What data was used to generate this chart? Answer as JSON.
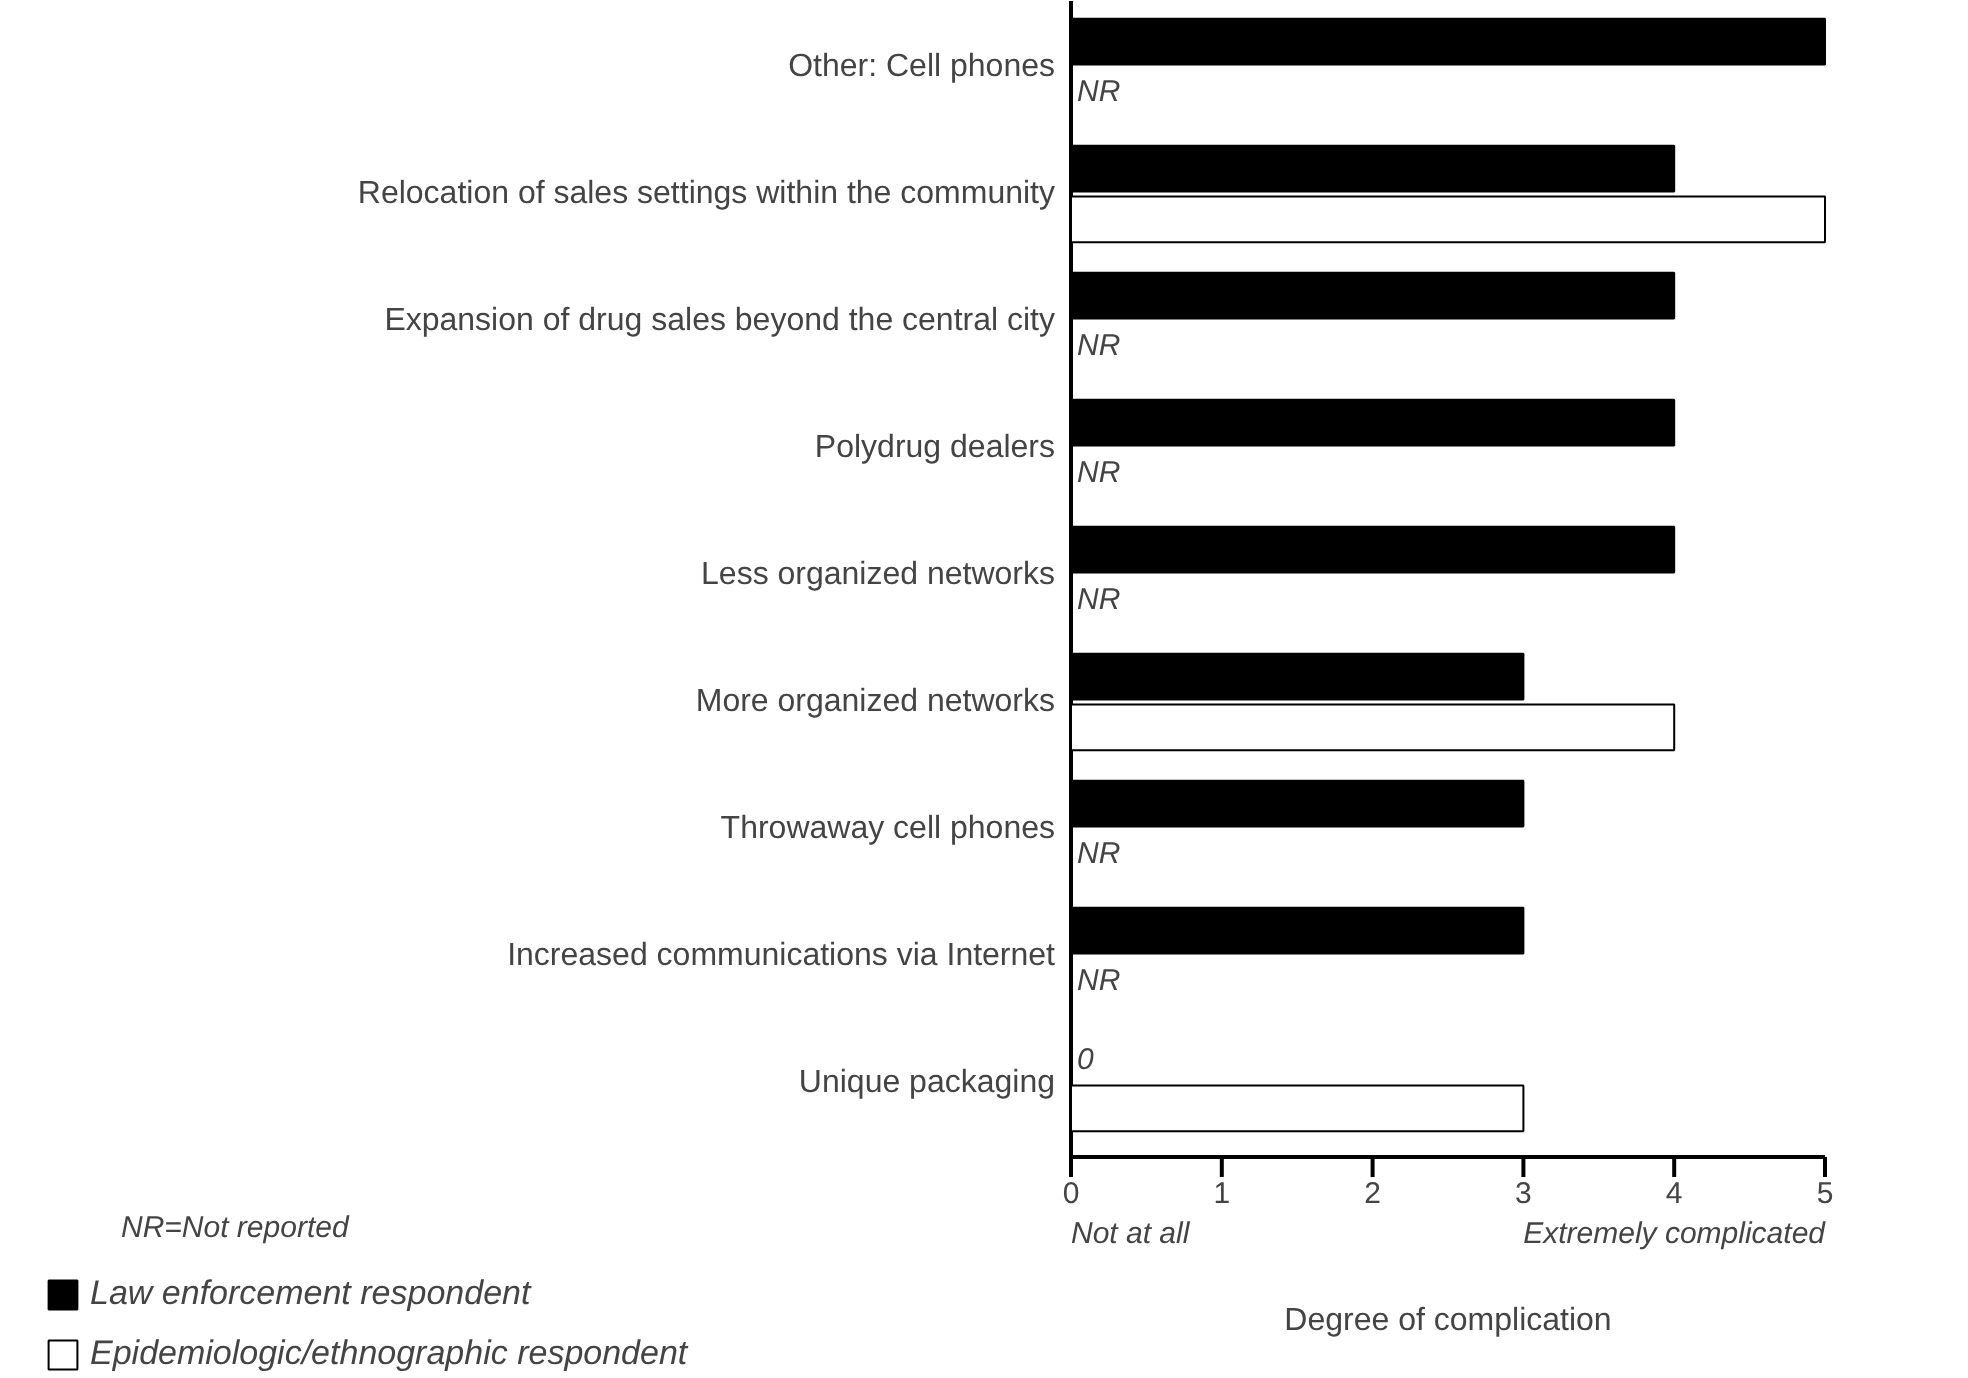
{
  "chart_data": {
    "type": "bar",
    "orientation": "horizontal",
    "xlabel": "Degree of complication",
    "categories": [
      "Other: Cell phones",
      "Relocation of sales settings within the community",
      "Expansion of drug sales beyond the central city",
      "Polydrug dealers",
      "Less organized networks",
      "More organized networks",
      "Throwaway cell phones",
      "Increased communications via Internet",
      "Unique packaging"
    ],
    "series": [
      {
        "name": "Law enforcement respondent",
        "color": "#000000",
        "values": [
          5,
          4,
          4,
          4,
          4,
          3,
          3,
          3,
          0
        ],
        "value_labels": [
          null,
          null,
          null,
          null,
          null,
          null,
          null,
          null,
          "0"
        ]
      },
      {
        "name": "Epidemiologic/ethnographic respondent",
        "color": "#ffffff",
        "values": [
          null,
          5,
          null,
          null,
          null,
          4,
          null,
          null,
          3
        ],
        "value_labels": [
          "NR",
          null,
          "NR",
          "NR",
          "NR",
          null,
          "NR",
          "NR",
          null
        ]
      }
    ],
    "xlim": [
      0,
      5
    ],
    "xticks": [
      {
        "value": 0,
        "label": "0\nNot at all"
      },
      1,
      2,
      3,
      4,
      {
        "value": 5,
        "label": "5\nExtremely complicated"
      }
    ],
    "annotations": [
      "NR=Not reported"
    ],
    "legend": "bottom left",
    "grid": false
  }
}
